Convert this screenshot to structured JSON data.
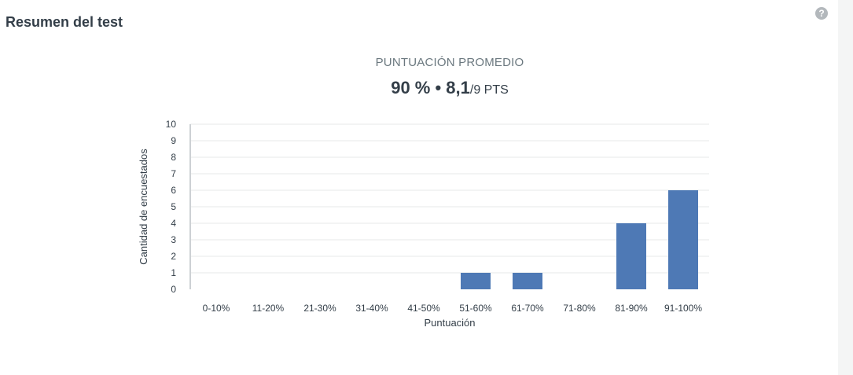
{
  "section": {
    "title": "Resumen del test",
    "help_icon": "question-circle-icon"
  },
  "score": {
    "label": "PUNTUACIÓN PROMEDIO",
    "percent": "90 %",
    "separator": " • ",
    "points": "8,1",
    "total": "/9 PTS"
  },
  "chart_data": {
    "type": "bar",
    "categories": [
      "0-10%",
      "11-20%",
      "21-30%",
      "31-40%",
      "41-50%",
      "51-60%",
      "61-70%",
      "71-80%",
      "81-90%",
      "91-100%"
    ],
    "values": [
      0,
      0,
      0,
      0,
      0,
      1,
      1,
      0,
      4,
      6
    ],
    "xlabel": "Puntuación",
    "ylabel": "Cantidad de encuestados",
    "ylim": [
      0,
      10
    ],
    "yticks": [
      0,
      1,
      2,
      3,
      4,
      5,
      6,
      7,
      8,
      9,
      10
    ],
    "grid": true,
    "bar_color": "#4e79b5"
  }
}
